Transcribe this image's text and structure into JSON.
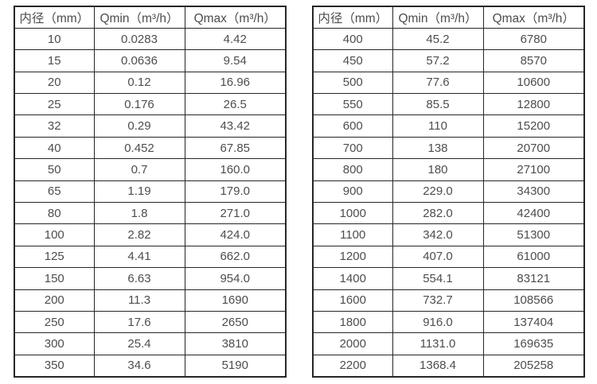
{
  "colors": {
    "background": "#ffffff",
    "text": "#4d4d4d",
    "border": "#262626"
  },
  "tables": [
    {
      "id": "diameter-flow-table-small",
      "headers": [
        "内径（mm）",
        "Qmin（m³/h）",
        "Qmax（m³/h）"
      ],
      "rows": [
        [
          "10",
          "0.0283",
          "4.42"
        ],
        [
          "15",
          "0.0636",
          "9.54"
        ],
        [
          "20",
          "0.12",
          "16.96"
        ],
        [
          "25",
          "0.176",
          "26.5"
        ],
        [
          "32",
          "0.29",
          "43.42"
        ],
        [
          "40",
          "0.452",
          "67.85"
        ],
        [
          "50",
          "0.7",
          "160.0"
        ],
        [
          "65",
          "1.19",
          "179.0"
        ],
        [
          "80",
          "1.8",
          "271.0"
        ],
        [
          "100",
          "2.82",
          "424.0"
        ],
        [
          "125",
          "4.41",
          "662.0"
        ],
        [
          "150",
          "6.63",
          "954.0"
        ],
        [
          "200",
          "11.3",
          "1690"
        ],
        [
          "250",
          "17.6",
          "2650"
        ],
        [
          "300",
          "25.4",
          "3810"
        ],
        [
          "350",
          "34.6",
          "5190"
        ]
      ]
    },
    {
      "id": "diameter-flow-table-large",
      "headers": [
        "内径（mm）",
        "Qmin（m³/h）",
        "Qmax（m³/h）"
      ],
      "rows": [
        [
          "400",
          "45.2",
          "6780"
        ],
        [
          "450",
          "57.2",
          "8570"
        ],
        [
          "500",
          "77.6",
          "10600"
        ],
        [
          "550",
          "85.5",
          "12800"
        ],
        [
          "600",
          "110",
          "15200"
        ],
        [
          "700",
          "138",
          "20700"
        ],
        [
          "800",
          "180",
          "27100"
        ],
        [
          "900",
          "229.0",
          "34300"
        ],
        [
          "1000",
          "282.0",
          "42400"
        ],
        [
          "1100",
          "342.0",
          "51300"
        ],
        [
          "1200",
          "407.0",
          "61000"
        ],
        [
          "1400",
          "554.1",
          "83121"
        ],
        [
          "1600",
          "732.7",
          "108566"
        ],
        [
          "1800",
          "916.0",
          "137404"
        ],
        [
          "2000",
          "1131.0",
          "169635"
        ],
        [
          "2200",
          "1368.4",
          "205258"
        ]
      ]
    }
  ]
}
